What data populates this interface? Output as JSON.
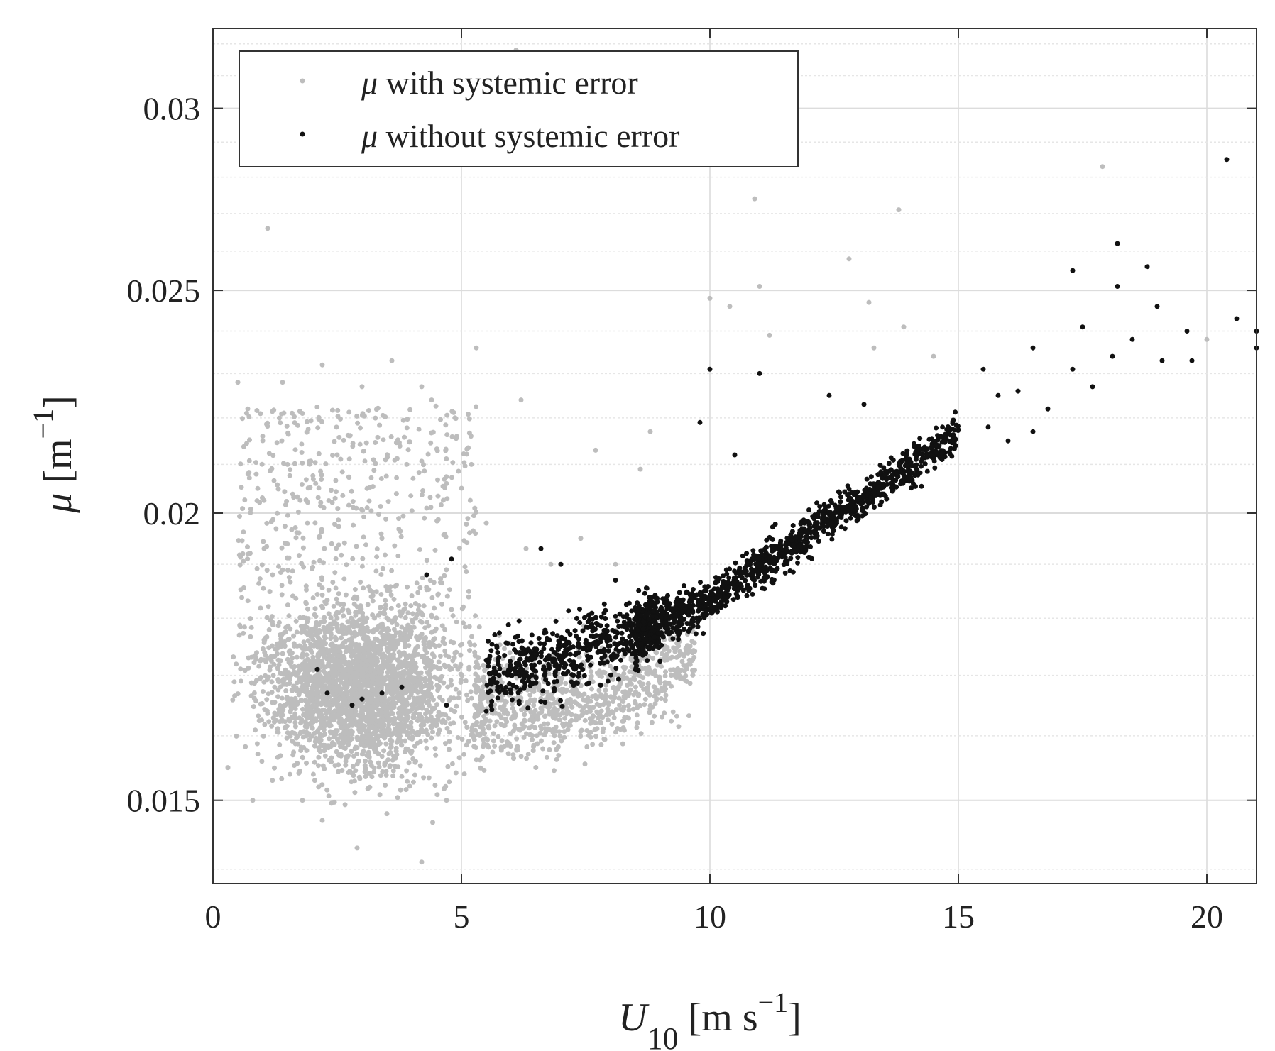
{
  "chart_data": {
    "type": "scatter",
    "xlabel": {
      "symbol": "U",
      "subscript": "10",
      "units_pre": " [m s",
      "units_sup": "−1",
      "units_post": "]"
    },
    "ylabel": {
      "symbol": "μ",
      "units_pre": " [m",
      "units_sup": "−1",
      "units_post": "]"
    },
    "xlim": [
      0,
      21
    ],
    "ylim": [
      0.0138,
      0.0325
    ],
    "xticks": [
      0,
      5,
      10,
      15,
      20
    ],
    "xtick_labels": [
      "0",
      "5",
      "10",
      "15",
      "20"
    ],
    "yticks": [
      0.015,
      0.02,
      0.025,
      0.03
    ],
    "ytick_labels": [
      "0.015",
      "0.02",
      "0.025",
      "0.03"
    ],
    "y_scale": "log",
    "grid": true,
    "legend_position": "top-left",
    "series": [
      {
        "name": "μ with systemic error",
        "symbol": "μ",
        "text": " with systemic error",
        "color": "#bdbdbd",
        "points": [
          [
            0.3,
            0.0155
          ],
          [
            0.5,
            0.0228
          ],
          [
            0.7,
            0.0222
          ],
          [
            1.0,
            0.0216
          ],
          [
            1.1,
            0.0266
          ],
          [
            1.4,
            0.0228
          ],
          [
            1.8,
            0.0221
          ],
          [
            2.2,
            0.0232
          ],
          [
            3.0,
            0.0227
          ],
          [
            3.6,
            0.0233
          ],
          [
            4.2,
            0.0227
          ],
          [
            4.4,
            0.0224
          ],
          [
            5.3,
            0.0236
          ],
          [
            6.1,
            0.0318
          ],
          [
            6.2,
            0.0224
          ],
          [
            7.7,
            0.0213
          ],
          [
            8.6,
            0.0209
          ],
          [
            8.8,
            0.0217
          ],
          [
            10.0,
            0.0248
          ],
          [
            10.4,
            0.0246
          ],
          [
            10.9,
            0.0274
          ],
          [
            11.0,
            0.0251
          ],
          [
            11.2,
            0.0239
          ],
          [
            12.8,
            0.0258
          ],
          [
            13.2,
            0.0247
          ],
          [
            13.3,
            0.0236
          ],
          [
            13.8,
            0.0271
          ],
          [
            13.9,
            0.0241
          ],
          [
            14.5,
            0.0234
          ],
          [
            17.9,
            0.0283
          ],
          [
            20.0,
            0.0238
          ],
          [
            0.8,
            0.015
          ],
          [
            2.2,
            0.0147
          ],
          [
            2.9,
            0.0143
          ],
          [
            4.2,
            0.0141
          ],
          [
            4.7,
            0.015
          ],
          [
            3.5,
            0.0148
          ],
          [
            1.8,
            0.015
          ],
          [
            0.6,
            0.0192
          ],
          [
            0.9,
            0.0205
          ],
          [
            1.2,
            0.0188
          ],
          [
            1.5,
            0.021
          ],
          [
            1.9,
            0.0198
          ],
          [
            2.5,
            0.0212
          ],
          [
            3.1,
            0.0205
          ],
          [
            3.4,
            0.0195
          ],
          [
            3.9,
            0.021
          ],
          [
            4.3,
            0.0201
          ],
          [
            4.7,
            0.0206
          ],
          [
            5.2,
            0.021
          ],
          [
            5.5,
            0.0198
          ],
          [
            6.3,
            0.0193
          ],
          [
            6.8,
            0.019
          ],
          [
            7.4,
            0.0195
          ],
          [
            8.1,
            0.019
          ]
        ]
      },
      {
        "name": "μ without systemic error",
        "symbol": "μ",
        "text": " without systemic error",
        "color": "#111111",
        "points": [
          [
            2.1,
            0.0171
          ],
          [
            2.3,
            0.0167
          ],
          [
            2.8,
            0.0165
          ],
          [
            3.0,
            0.0166
          ],
          [
            3.4,
            0.0167
          ],
          [
            3.8,
            0.0168
          ],
          [
            4.3,
            0.0188
          ],
          [
            4.7,
            0.0165
          ],
          [
            4.8,
            0.0191
          ],
          [
            5.5,
            0.0164
          ],
          [
            6.0,
            0.0167
          ],
          [
            6.6,
            0.0193
          ],
          [
            7.0,
            0.019
          ],
          [
            8.1,
            0.0187
          ],
          [
            9.8,
            0.0219
          ],
          [
            10.0,
            0.0231
          ],
          [
            10.5,
            0.0212
          ],
          [
            11.0,
            0.023
          ],
          [
            12.4,
            0.0225
          ],
          [
            13.1,
            0.0223
          ],
          [
            15.5,
            0.0231
          ],
          [
            15.6,
            0.0218
          ],
          [
            16.5,
            0.0236
          ],
          [
            17.3,
            0.0255
          ],
          [
            17.5,
            0.0241
          ],
          [
            18.2,
            0.0262
          ],
          [
            18.2,
            0.0251
          ],
          [
            18.8,
            0.0256
          ],
          [
            19.0,
            0.0246
          ],
          [
            19.6,
            0.024
          ],
          [
            19.7,
            0.0233
          ],
          [
            20.4,
            0.0285
          ],
          [
            20.6,
            0.0243
          ],
          [
            21.0,
            0.024
          ],
          [
            21.0,
            0.0236
          ],
          [
            15.8,
            0.0225
          ],
          [
            16.2,
            0.0226
          ],
          [
            16.8,
            0.0222
          ],
          [
            17.3,
            0.0231
          ],
          [
            17.7,
            0.0227
          ],
          [
            18.1,
            0.0234
          ],
          [
            18.5,
            0.0238
          ],
          [
            19.1,
            0.0233
          ],
          [
            16.0,
            0.0215
          ],
          [
            16.5,
            0.0217
          ]
        ]
      }
    ]
  }
}
